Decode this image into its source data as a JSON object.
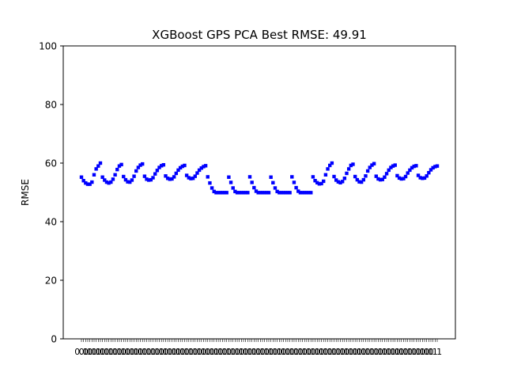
{
  "chart_data": {
    "type": "scatter",
    "title": "XGBoost GPS PCA Best RMSE: 49.91",
    "xlabel": "",
    "ylabel": "RMSE",
    "ylim": [
      0,
      100
    ],
    "yticks": [
      "0",
      "20",
      "40",
      "60",
      "80",
      "100"
    ],
    "grid": false,
    "marker_color": "#0000ff",
    "x_tick_labels_note": "dense overlapping numeric labels, unreadable",
    "series": [
      {
        "values": [
          55.2,
          54.0,
          53.2,
          52.8,
          52.8,
          53.5,
          56.0,
          58.0,
          59.0,
          60.0,
          55.2,
          54.2,
          53.5,
          53.2,
          53.5,
          54.5,
          56.0,
          57.8,
          59.0,
          59.5,
          55.4,
          54.3,
          53.6,
          53.5,
          54.2,
          55.5,
          57.3,
          58.5,
          59.3,
          59.7,
          55.5,
          54.5,
          54.2,
          54.3,
          55.0,
          56.3,
          57.5,
          58.5,
          59.1,
          59.4,
          55.6,
          54.8,
          54.5,
          54.6,
          55.3,
          56.5,
          57.6,
          58.4,
          58.9,
          59.2,
          55.8,
          55.0,
          54.7,
          54.8,
          55.5,
          56.6,
          57.6,
          58.3,
          58.8,
          59.1,
          55.3,
          53.2,
          51.5,
          50.3,
          49.91,
          49.91,
          49.91,
          49.91,
          49.91,
          49.91,
          55.2,
          53.4,
          51.5,
          50.3,
          49.91,
          49.91,
          49.91,
          49.91,
          49.91,
          49.91,
          55.3,
          53.4,
          51.6,
          50.4,
          49.91,
          49.91,
          49.91,
          49.91,
          49.91,
          49.91,
          55.2,
          53.3,
          51.5,
          50.3,
          49.91,
          49.91,
          49.91,
          49.91,
          49.91,
          49.91,
          55.3,
          53.4,
          51.6,
          50.4,
          49.91,
          49.91,
          49.91,
          49.91,
          49.91,
          49.91,
          55.3,
          54.0,
          53.3,
          52.9,
          53.0,
          53.8,
          56.0,
          58.0,
          59.2,
          60.0,
          55.4,
          54.2,
          53.6,
          53.3,
          53.7,
          54.8,
          56.5,
          58.0,
          59.2,
          59.6,
          55.4,
          54.3,
          53.6,
          53.5,
          54.3,
          55.6,
          57.3,
          58.5,
          59.3,
          59.8,
          55.5,
          54.6,
          54.3,
          54.4,
          55.2,
          56.4,
          57.6,
          58.5,
          59.0,
          59.3,
          55.7,
          54.9,
          54.6,
          54.7,
          55.4,
          56.6,
          57.6,
          58.4,
          58.9,
          59.1,
          55.8,
          55.0,
          54.8,
          54.9,
          55.6,
          56.7,
          57.7,
          58.4,
          58.8,
          59.0
        ]
      }
    ]
  }
}
